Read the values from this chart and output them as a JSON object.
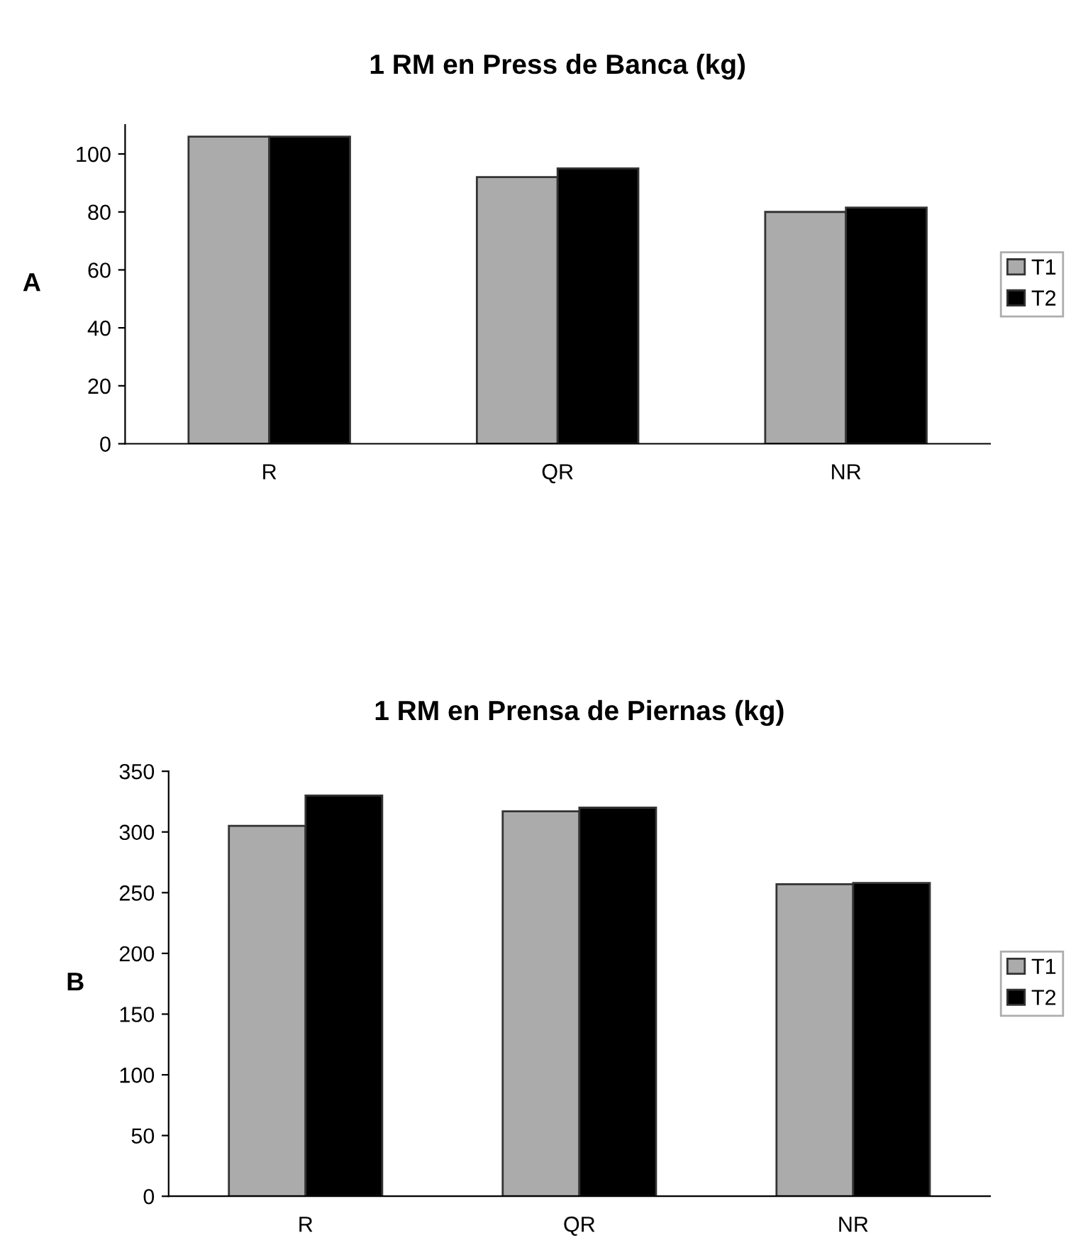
{
  "chart_data": [
    {
      "type": "bar",
      "title": "1 RM en Press de Banca (kg)",
      "ylabel": "A",
      "categories": [
        "R",
        "QR",
        "NR"
      ],
      "series": [
        {
          "name": "T1",
          "color": "#ababab",
          "values": [
            106,
            92,
            80
          ]
        },
        {
          "name": "T2",
          "color": "#000000",
          "values": [
            106,
            95,
            81.5
          ]
        }
      ],
      "ylim": [
        0,
        110
      ],
      "yticks": [
        0,
        20,
        40,
        60,
        80,
        100
      ],
      "grid": false,
      "legend": "right"
    },
    {
      "type": "bar",
      "title": "1 RM en Prensa de Piernas (kg)",
      "ylabel": "B",
      "categories": [
        "R",
        "QR",
        "NR"
      ],
      "series": [
        {
          "name": "T1",
          "color": "#ababab",
          "values": [
            305,
            317,
            257
          ]
        },
        {
          "name": "T2",
          "color": "#000000",
          "values": [
            330,
            320,
            258
          ]
        }
      ],
      "ylim": [
        0,
        350
      ],
      "yticks": [
        0,
        50,
        100,
        150,
        200,
        250,
        300,
        350
      ],
      "grid": false,
      "legend": "right"
    }
  ]
}
